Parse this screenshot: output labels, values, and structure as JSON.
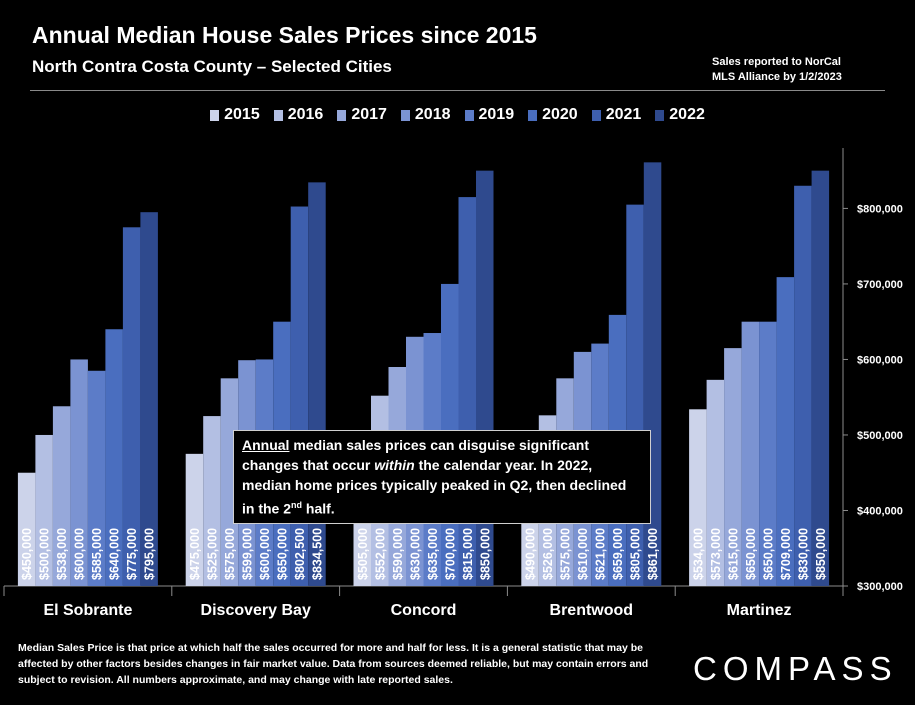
{
  "header": {
    "title": "Annual Median House Sales Prices since 2015",
    "subtitle": "North Contra Costa County – Selected Cities",
    "source_line1": "Sales reported to NorCal",
    "source_line2": "MLS Alliance by 1/2/2023"
  },
  "callout": {
    "word_annual": "Annual",
    "part1": " median sales prices can disguise significant changes that occur ",
    "word_within": "within",
    "part2": " the calendar year. In 2022, median home prices typically peaked in Q2, then declined in the 2",
    "superscript": "nd",
    "part3": " half."
  },
  "footnote": "Median Sales Price is that price at which half the sales occurred for more and half for less. It is a general statistic that may be affected by other factors besides changes in fair market value. Data from sources deemed reliable, but may contain errors and subject to revision.  All numbers approximate, and may change with late reported sales.",
  "logo": "COMPASS",
  "chart_data": {
    "type": "bar",
    "title": "Annual Median House Sales Prices since 2015",
    "categories": [
      "El Sobrante",
      "Discovery Bay",
      "Concord",
      "Brentwood",
      "Martinez"
    ],
    "series": [
      {
        "name": "2015",
        "color": "#ccd3ea",
        "values": [
          450000,
          475000,
          505000,
          490000,
          534000
        ]
      },
      {
        "name": "2016",
        "color": "#b3bfe3",
        "values": [
          500000,
          525000,
          552000,
          526000,
          573000
        ]
      },
      {
        "name": "2017",
        "color": "#96a8da",
        "values": [
          538000,
          575000,
          590000,
          575000,
          615000
        ]
      },
      {
        "name": "2018",
        "color": "#7b93d2",
        "values": [
          600000,
          599000,
          630000,
          610000,
          650000
        ]
      },
      {
        "name": "2019",
        "color": "#5c7cc8",
        "values": [
          585000,
          600000,
          635000,
          621000,
          650000
        ]
      },
      {
        "name": "2020",
        "color": "#4a6ebf",
        "values": [
          640000,
          650000,
          700000,
          659000,
          709000
        ]
      },
      {
        "name": "2021",
        "color": "#3e5fae",
        "values": [
          775000,
          802500,
          815000,
          805000,
          830000
        ]
      },
      {
        "name": "2022",
        "color": "#2f4a8e",
        "values": [
          795000,
          834500,
          850000,
          861000,
          850000
        ]
      }
    ],
    "data_labels": [
      [
        "$450,000",
        "$500,000",
        "$538,000",
        "$600,000",
        "$585,000",
        "$640,000",
        "$775,000",
        "$795,000"
      ],
      [
        "$475,000",
        "$525,000",
        "$575,000",
        "$599,000",
        "$600,000",
        "$650,000",
        "$802,500",
        "$834,500"
      ],
      [
        "$505,000",
        "$552,000",
        "$590,000",
        "$630,000",
        "$635,000",
        "$700,000",
        "$815,000",
        "$850,000"
      ],
      [
        "$490,000",
        "$526,000",
        "$575,000",
        "$610,000",
        "$621,000",
        "$659,000",
        "$805,000",
        "$861,000"
      ],
      [
        "$534,000",
        "$573,000",
        "$615,000",
        "$650,000",
        "$650,000",
        "$709,000",
        "$830,000",
        "$850,000"
      ]
    ],
    "y_ticks": [
      300000,
      400000,
      500000,
      600000,
      700000,
      800000
    ],
    "y_tick_labels": [
      "$300,000",
      "$400,000",
      "$500,000",
      "$600,000",
      "$700,000",
      "$800,000"
    ],
    "ylim": [
      300000,
      880000
    ],
    "y_axis_side": "right",
    "legend_position": "top",
    "grid": false
  }
}
